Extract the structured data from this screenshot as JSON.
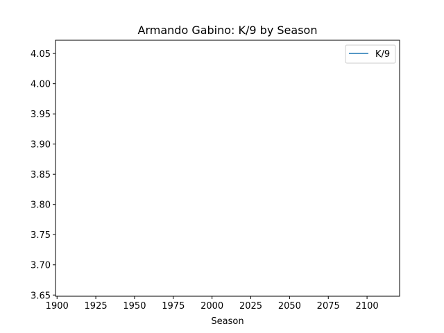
{
  "chart_data": {
    "type": "line",
    "title": "Armando Gabino: K/9 by Season",
    "xlabel": "Season",
    "ylabel": "",
    "xlim": [
      1899,
      2121
    ],
    "ylim": [
      3.648,
      4.072
    ],
    "xticks": [
      1900,
      1925,
      1950,
      1975,
      2000,
      2025,
      2050,
      2075,
      2100
    ],
    "yticks": [
      3.65,
      3.7,
      3.75,
      3.8,
      3.85,
      3.9,
      3.95,
      4.0,
      4.05
    ],
    "xtick_labels": [
      "1900",
      "1925",
      "1950",
      "1975",
      "2000",
      "2025",
      "2050",
      "2075",
      "2100"
    ],
    "ytick_labels": [
      "3.65",
      "3.70",
      "3.75",
      "3.80",
      "3.85",
      "3.90",
      "3.95",
      "4.00",
      "4.05"
    ],
    "grid": false,
    "legend_position": "top-right",
    "series": [
      {
        "name": "K/9",
        "color": "#1f77b4",
        "x": [],
        "y": []
      }
    ]
  }
}
